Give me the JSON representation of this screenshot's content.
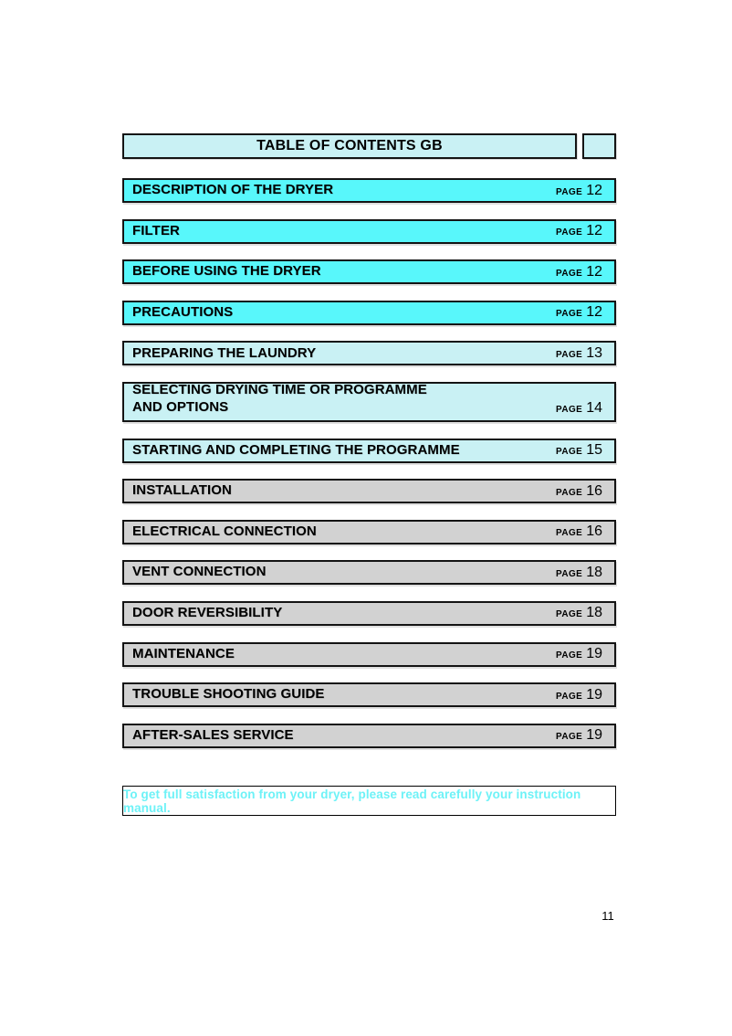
{
  "page": {
    "title": "TABLE OF CONTENTS GB",
    "page_word": "PAGE",
    "footer_page_number": "11",
    "note": "To get full satisfaction from your dryer, please read carefully your instruction manual."
  },
  "colors": {
    "bright_cyan": "#58F7FB",
    "light_cyan": "#C9F1F4",
    "gray_fill": "#D2D2D2",
    "note_text": "#6EF2F7",
    "border": "#141414"
  },
  "toc": {
    "items": [
      {
        "label": "DESCRIPTION OF THE DRYER",
        "page": "12",
        "variant": "bright"
      },
      {
        "label": "FILTER",
        "page": "12",
        "variant": "bright"
      },
      {
        "label": "BEFORE USING THE DRYER",
        "page": "12",
        "variant": "bright"
      },
      {
        "label": "PRECAUTIONS",
        "page": "12",
        "variant": "bright"
      },
      {
        "label": "PREPARING THE LAUNDRY",
        "page": "13",
        "variant": "light"
      },
      {
        "label": "SELECTING DRYING TIME OR PROGRAMME",
        "label2": "AND OPTIONS",
        "page": "14",
        "variant": "light"
      },
      {
        "label": "STARTING AND COMPLETING THE PROGRAMME",
        "page": "15",
        "variant": "light"
      },
      {
        "label": "INSTALLATION",
        "page": "16",
        "variant": "gray"
      },
      {
        "label": "ELECTRICAL CONNECTION",
        "page": "16",
        "variant": "gray"
      },
      {
        "label": "VENT CONNECTION",
        "page": "18",
        "variant": "gray"
      },
      {
        "label": "DOOR REVERSIBILITY",
        "page": "18",
        "variant": "gray"
      },
      {
        "label": "MAINTENANCE",
        "page": "19",
        "variant": "gray"
      },
      {
        "label": "TROUBLE SHOOTING GUIDE",
        "page": "19",
        "variant": "gray"
      },
      {
        "label": "AFTER-SALES SERVICE",
        "page": "19",
        "variant": "gray"
      }
    ]
  }
}
